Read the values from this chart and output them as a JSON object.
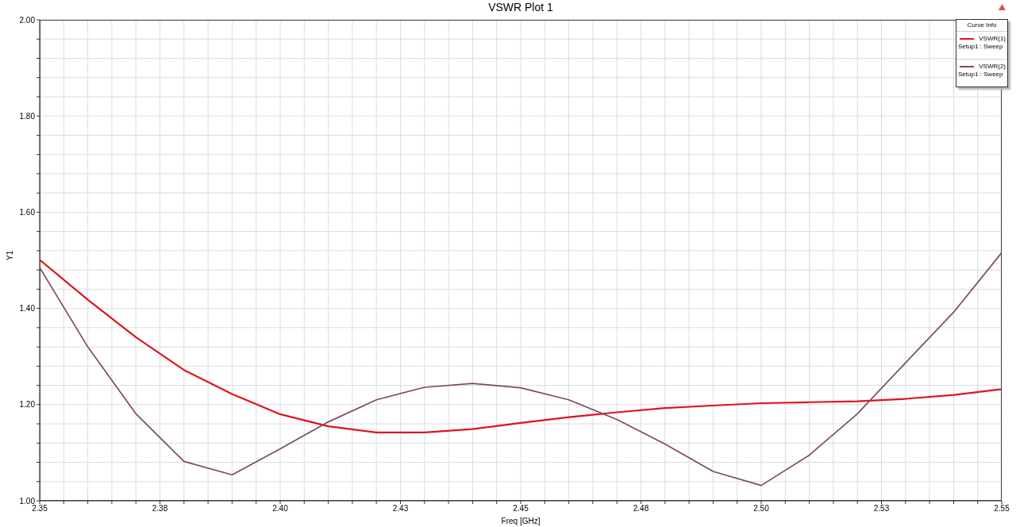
{
  "chart_data": {
    "type": "line",
    "title": "VSWR Plot 1",
    "xlabel": "Freq [GHz]",
    "ylabel": "Y1",
    "legend_title": "Curve Info",
    "legend": "top right",
    "grid": true,
    "x": [
      2.35,
      2.36,
      2.37,
      2.38,
      2.39,
      2.4,
      2.41,
      2.42,
      2.43,
      2.44,
      2.45,
      2.46,
      2.47,
      2.48,
      2.49,
      2.5,
      2.51,
      2.52,
      2.53,
      2.54,
      2.55
    ],
    "series": [
      {
        "name": "VSWR(1)\nSetup1 : Sweep",
        "color": "#e0141e",
        "values": [
          1.501,
          1.418,
          1.34,
          1.272,
          1.222,
          1.18,
          1.155,
          1.142,
          1.142,
          1.149,
          1.162,
          1.174,
          1.184,
          1.193,
          1.198,
          1.203,
          1.205,
          1.207,
          1.212,
          1.22,
          1.232
        ]
      },
      {
        "name": "VSWR(2)\nSetup1 : Sweep",
        "color": "#7b4a66",
        "values": [
          1.485,
          1.32,
          1.181,
          1.082,
          1.054,
          1.108,
          1.164,
          1.21,
          1.236,
          1.244,
          1.235,
          1.21,
          1.169,
          1.118,
          1.061,
          1.032,
          1.095,
          1.181,
          1.287,
          1.392,
          1.516
        ]
      }
    ],
    "xlim": [
      2.35,
      2.55
    ],
    "xticks": [
      2.35,
      {
        "value": 2.355,
        "label": null
      },
      {
        "value": 2.36,
        "label": null
      },
      {
        "value": 2.365,
        "label": null
      },
      {
        "value": 2.37,
        "label": null
      },
      {
        "value": 2.375,
        "label": "2.38"
      },
      {
        "value": 2.38,
        "label": null
      },
      {
        "value": 2.385,
        "label": null
      },
      {
        "value": 2.39,
        "label": null
      },
      {
        "value": 2.395,
        "label": null
      },
      {
        "value": 2.4,
        "label": "2.40"
      },
      {
        "value": 2.405,
        "label": null
      },
      {
        "value": 2.41,
        "label": null
      },
      {
        "value": 2.415,
        "label": null
      },
      {
        "value": 2.42,
        "label": null
      },
      {
        "value": 2.425,
        "label": "2.43"
      },
      {
        "value": 2.43,
        "label": null
      },
      {
        "value": 2.435,
        "label": null
      },
      {
        "value": 2.44,
        "label": null
      },
      {
        "value": 2.445,
        "label": null
      },
      2.45,
      {
        "value": 2.455,
        "label": null
      },
      {
        "value": 2.46,
        "label": null
      },
      {
        "value": 2.465,
        "label": null
      },
      {
        "value": 2.47,
        "label": null
      },
      {
        "value": 2.475,
        "label": "2.48"
      },
      {
        "value": 2.48,
        "label": null
      },
      {
        "value": 2.485,
        "label": null
      },
      {
        "value": 2.49,
        "label": null
      },
      {
        "value": 2.495,
        "label": null
      },
      {
        "value": 2.5,
        "label": "2.50"
      },
      {
        "value": 2.505,
        "label": null
      },
      {
        "value": 2.51,
        "label": null
      },
      {
        "value": 2.515,
        "label": null
      },
      {
        "value": 2.52,
        "label": null
      },
      {
        "value": 2.525,
        "label": "2.53"
      },
      {
        "value": 2.53,
        "label": null
      },
      {
        "value": 2.535,
        "label": null
      },
      {
        "value": 2.54,
        "label": null
      },
      {
        "value": 2.545,
        "label": null
      },
      2.55
    ],
    "ylim": [
      1,
      2
    ],
    "yticks": [
      {
        "value": 1,
        "label": "1.00"
      },
      {
        "value": 1.04,
        "label": null
      },
      {
        "value": 1.08,
        "label": null
      },
      {
        "value": 1.12,
        "label": null
      },
      {
        "value": 1.16,
        "label": null
      },
      {
        "value": 1.2,
        "label": "1.20"
      },
      {
        "value": 1.24,
        "label": null
      },
      {
        "value": 1.28,
        "label": null
      },
      {
        "value": 1.32,
        "label": null
      },
      {
        "value": 1.36,
        "label": null
      },
      {
        "value": 1.4,
        "label": "1.40"
      },
      {
        "value": 1.44,
        "label": null
      },
      {
        "value": 1.48,
        "label": null
      },
      {
        "value": 1.52,
        "label": null
      },
      {
        "value": 1.56,
        "label": null
      },
      {
        "value": 1.6,
        "label": "1.60"
      },
      {
        "value": 1.64,
        "label": null
      },
      {
        "value": 1.68,
        "label": null
      },
      {
        "value": 1.72,
        "label": null
      },
      {
        "value": 1.76,
        "label": null
      },
      {
        "value": 1.8,
        "label": "1.80"
      },
      {
        "value": 1.84,
        "label": null
      },
      {
        "value": 1.88,
        "label": null
      },
      {
        "value": 1.92,
        "label": null
      },
      {
        "value": 1.96,
        "label": null
      },
      {
        "value": 2,
        "label": "2.00"
      }
    ]
  }
}
